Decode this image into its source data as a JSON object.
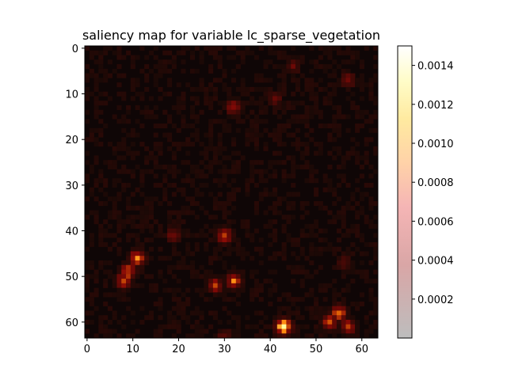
{
  "chart_data": {
    "type": "heatmap",
    "title": "saliency map for variable lc_sparse_vegetation",
    "xlabel": "",
    "ylabel": "",
    "grid_size": [
      64,
      64
    ],
    "x_ticks": [
      "0",
      "10",
      "20",
      "30",
      "40",
      "50",
      "60"
    ],
    "y_ticks": [
      "0",
      "10",
      "20",
      "30",
      "40",
      "50",
      "60"
    ],
    "colorbar_ticks": [
      "0.0002",
      "0.0004",
      "0.0006",
      "0.0008",
      "0.0010",
      "0.0012",
      "0.0014"
    ],
    "colorbar_range": [
      0.0,
      0.0015
    ],
    "colormap": "afmhot (semi-transparent over gray)",
    "background_level": 4e-05,
    "hotspots": [
      {
        "x": 9,
        "y": 49,
        "value": 0.0008
      },
      {
        "x": 11,
        "y": 46,
        "value": 0.0009
      },
      {
        "x": 8,
        "y": 51,
        "value": 0.0007
      },
      {
        "x": 30,
        "y": 41,
        "value": 0.0007
      },
      {
        "x": 32,
        "y": 51,
        "value": 0.0008
      },
      {
        "x": 28,
        "y": 52,
        "value": 0.0006
      },
      {
        "x": 55,
        "y": 58,
        "value": 0.0008
      },
      {
        "x": 53,
        "y": 60,
        "value": 0.0007
      },
      {
        "x": 57,
        "y": 61,
        "value": 0.0006
      },
      {
        "x": 43,
        "y": 61,
        "value": 0.0014
      },
      {
        "x": 32,
        "y": 13,
        "value": 0.0005
      },
      {
        "x": 57,
        "y": 7,
        "value": 0.0004
      },
      {
        "x": 45,
        "y": 4,
        "value": 0.0003
      },
      {
        "x": 41,
        "y": 11,
        "value": 0.0003
      },
      {
        "x": 19,
        "y": 41,
        "value": 0.0004
      },
      {
        "x": 56,
        "y": 47,
        "value": 0.0003
      },
      {
        "x": 30,
        "y": 63,
        "value": 0.0003
      }
    ]
  }
}
